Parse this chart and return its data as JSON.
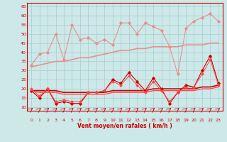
{
  "xlabel": "Vent moyen/en rafales ( km/h )",
  "xlim": [
    -0.5,
    23.5
  ],
  "ylim": [
    8,
    67
  ],
  "yticks": [
    10,
    15,
    20,
    25,
    30,
    35,
    40,
    45,
    50,
    55,
    60,
    65
  ],
  "xticks": [
    0,
    1,
    2,
    3,
    4,
    5,
    6,
    7,
    8,
    9,
    10,
    11,
    12,
    13,
    14,
    15,
    16,
    17,
    18,
    19,
    20,
    21,
    22,
    23
  ],
  "bg_color": "#cce8e8",
  "grid_color": "#aacccc",
  "lines": [
    {
      "x": [
        0,
        1,
        2,
        3,
        4,
        5,
        6,
        7,
        8,
        9,
        10,
        11,
        12,
        13,
        14,
        15,
        16,
        17,
        18,
        19,
        20,
        21,
        22,
        23
      ],
      "y": [
        33,
        39,
        40,
        50,
        36,
        55,
        47,
        48,
        45,
        47,
        44,
        56,
        56,
        50,
        56,
        54,
        52,
        43,
        28,
        53,
        57,
        59,
        61,
        57
      ],
      "color": "#e89090",
      "lw": 0.8,
      "marker": "D",
      "ms": 1.8,
      "zorder": 2
    },
    {
      "x": [
        0,
        1,
        2,
        3,
        4,
        5,
        6,
        7,
        8,
        9,
        10,
        11,
        12,
        13,
        14,
        15,
        16,
        17,
        18,
        19,
        20,
        21,
        22,
        23
      ],
      "y": [
        32,
        33,
        34,
        35,
        35,
        36,
        37,
        37,
        38,
        39,
        40,
        41,
        41,
        42,
        42,
        43,
        43,
        43,
        43,
        44,
        44,
        44,
        45,
        45
      ],
      "color": "#e89090",
      "lw": 1.2,
      "marker": null,
      "ms": 0,
      "zorder": 2
    },
    {
      "x": [
        0,
        1,
        2,
        3,
        4,
        5,
        6,
        7,
        8,
        9,
        10,
        11,
        12,
        13,
        14,
        15,
        16,
        17,
        18,
        19,
        20,
        21,
        22,
        23
      ],
      "y": [
        19,
        15,
        20,
        12,
        13,
        12,
        12,
        18,
        18,
        19,
        25,
        23,
        29,
        24,
        19,
        26,
        20,
        12,
        18,
        22,
        21,
        30,
        38,
        23
      ],
      "color": "#cc0000",
      "lw": 0.8,
      "marker": "D",
      "ms": 1.8,
      "zorder": 3
    },
    {
      "x": [
        0,
        1,
        2,
        3,
        4,
        5,
        6,
        7,
        8,
        9,
        10,
        11,
        12,
        13,
        14,
        15,
        16,
        17,
        18,
        19,
        20,
        21,
        22,
        23
      ],
      "y": [
        19,
        19,
        19,
        19,
        18,
        18,
        18,
        18,
        18,
        18,
        19,
        19,
        19,
        19,
        19,
        20,
        20,
        20,
        20,
        20,
        20,
        21,
        21,
        22
      ],
      "color": "#cc0000",
      "lw": 1.2,
      "marker": null,
      "ms": 0,
      "zorder": 3
    },
    {
      "x": [
        0,
        1,
        2,
        3,
        4,
        5,
        6,
        7,
        8,
        9,
        10,
        11,
        12,
        13,
        14,
        15,
        16,
        17,
        18,
        19,
        20,
        21,
        22,
        23
      ],
      "y": [
        20,
        16,
        20,
        13,
        14,
        13,
        13,
        18,
        18,
        19,
        24,
        22,
        27,
        22,
        18,
        24,
        19,
        13,
        18,
        21,
        21,
        28,
        36,
        22
      ],
      "color": "#ff4444",
      "lw": 0.7,
      "marker": "D",
      "ms": 1.5,
      "zorder": 3
    },
    {
      "x": [
        0,
        1,
        2,
        3,
        4,
        5,
        6,
        7,
        8,
        9,
        10,
        11,
        12,
        13,
        14,
        15,
        16,
        17,
        18,
        19,
        20,
        21,
        22,
        23
      ],
      "y": [
        19,
        18,
        18,
        18,
        17,
        17,
        17,
        17,
        17,
        17,
        18,
        18,
        18,
        18,
        18,
        19,
        19,
        19,
        19,
        19,
        19,
        20,
        20,
        21
      ],
      "color": "#ff4444",
      "lw": 0.9,
      "marker": null,
      "ms": 0,
      "zorder": 3
    }
  ],
  "arrow_color": "#cc0000",
  "xlabel_color": "#cc0000",
  "tick_color": "#cc0000",
  "spine_color": "#cc0000"
}
